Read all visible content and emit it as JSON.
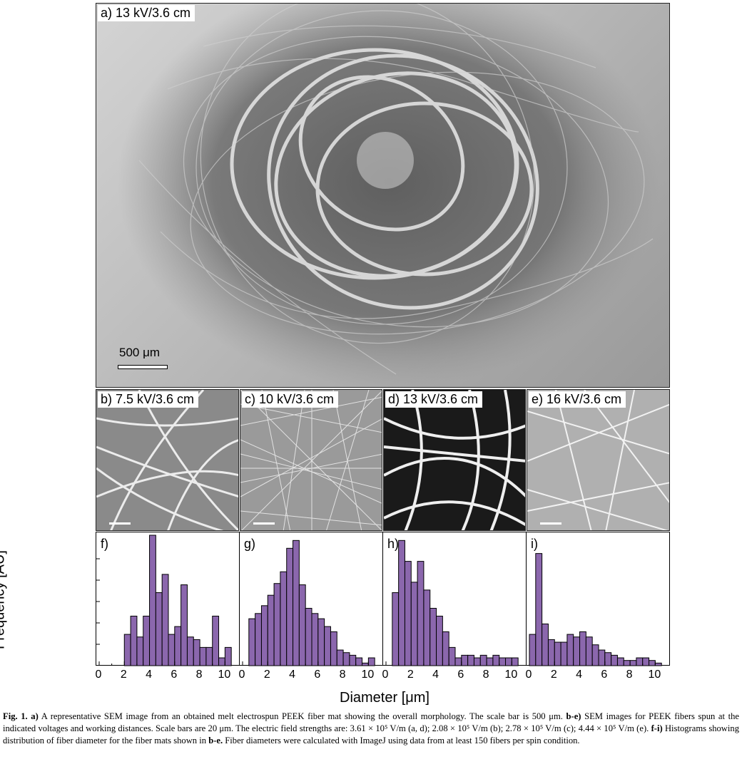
{
  "panels": {
    "a": {
      "label": "a) 13 kV/3.6 cm",
      "scale_bar": "500 μm"
    },
    "b": {
      "label": "b) 7.5 kV/3.6 cm"
    },
    "c": {
      "label": "c) 10 kV/3.6 cm"
    },
    "d": {
      "label": "d) 13 kV/3.6 cm"
    },
    "e": {
      "label": "e) 16 kV/3.6 cm"
    }
  },
  "axis": {
    "ylabel": "Frequency [AU]",
    "xlabel": "Diameter [μm]",
    "xticks": [
      "0",
      "2",
      "4",
      "6",
      "8",
      "10"
    ]
  },
  "chart_data": [
    {
      "type": "bar",
      "label": "f)",
      "bin_width": 0.5,
      "x": [
        2.0,
        2.5,
        3.0,
        3.5,
        4.0,
        4.5,
        5.0,
        5.5,
        6.0,
        6.5,
        7.0,
        7.5,
        8.0,
        8.5,
        9.0,
        9.5,
        10.0
      ],
      "values": [
        0.24,
        0.38,
        0.22,
        0.38,
        1.0,
        0.56,
        0.7,
        0.24,
        0.3,
        0.62,
        0.22,
        0.2,
        0.14,
        0.14,
        0.38,
        0.06,
        0.14
      ],
      "xlim": [
        0,
        11
      ]
    },
    {
      "type": "bar",
      "label": "g)",
      "bin_width": 0.5,
      "x": [
        0.5,
        1.0,
        1.5,
        2.0,
        2.5,
        3.0,
        3.5,
        4.0,
        4.5,
        5.0,
        5.5,
        6.0,
        6.5,
        7.0,
        7.5,
        8.0,
        8.5,
        9.0,
        9.5,
        10.0
      ],
      "values": [
        0.36,
        0.4,
        0.46,
        0.54,
        0.63,
        0.72,
        0.9,
        0.96,
        0.62,
        0.44,
        0.4,
        0.36,
        0.3,
        0.26,
        0.12,
        0.1,
        0.08,
        0.06,
        0.02,
        0.06
      ],
      "xlim": [
        0,
        11
      ]
    },
    {
      "type": "bar",
      "label": "h)",
      "bin_width": 0.5,
      "x": [
        0.5,
        1.0,
        1.5,
        2.0,
        2.5,
        3.0,
        3.5,
        4.0,
        4.5,
        5.0,
        5.5,
        6.0,
        6.5,
        7.0,
        7.5,
        8.0,
        8.5,
        9.0,
        9.5,
        10.0
      ],
      "values": [
        0.56,
        0.96,
        0.8,
        0.64,
        0.8,
        0.58,
        0.44,
        0.38,
        0.26,
        0.14,
        0.06,
        0.08,
        0.08,
        0.06,
        0.08,
        0.06,
        0.08,
        0.06,
        0.06,
        0.06
      ],
      "xlim": [
        0,
        11
      ]
    },
    {
      "type": "bar",
      "label": "i)",
      "bin_width": 0.5,
      "x": [
        0.0,
        0.5,
        1.0,
        1.5,
        2.0,
        2.5,
        3.0,
        3.5,
        4.0,
        4.5,
        5.0,
        5.5,
        6.0,
        6.5,
        7.0,
        7.5,
        8.0,
        8.5,
        9.0,
        9.5,
        10.0
      ],
      "values": [
        0.24,
        0.86,
        0.32,
        0.2,
        0.18,
        0.18,
        0.24,
        0.22,
        0.26,
        0.22,
        0.16,
        0.12,
        0.1,
        0.08,
        0.06,
        0.04,
        0.04,
        0.06,
        0.06,
        0.04,
        0.02
      ],
      "xlim": [
        0,
        11
      ]
    }
  ],
  "colors": {
    "bar_fill": "#8b67ad",
    "bar_stroke": "#000000"
  },
  "caption": {
    "fig_label": "Fig. 1.",
    "a_bold": "a)",
    "part1": " A representative SEM image from an obtained melt electrospun PEEK fiber mat showing the overall morphology. The scale bar is 500 μm. ",
    "be_bold": "b-e)",
    "part2": " SEM images for PEEK fibers spun at the indicated voltages and working distances. Scale bars are 20 μm. The electric field strengths are: 3.61 × 10⁵ V/m (a, d); 2.08 × 10⁵ V/m (b); 2.78 × 10⁵ V/m (c); 4.44 × 10⁵ V/m (e). ",
    "fi_bold": "f-i)",
    "part3": " Histograms showing distribution of fiber diameter for the fiber mats shown in ",
    "be2_bold": "b-e.",
    "part4": " Fiber diameters were calculated with ImageJ using data from at least 150 fibers per spin condition."
  }
}
